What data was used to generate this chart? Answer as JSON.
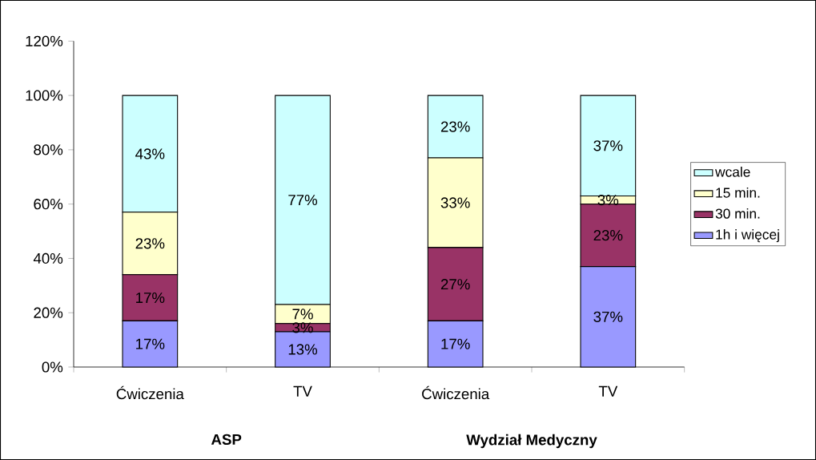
{
  "chart_data": {
    "type": "bar",
    "stacked": true,
    "categories": [
      "Ćwiczenia",
      "TV",
      "Ćwiczenia",
      "TV"
    ],
    "series": [
      {
        "name": "1h i więcej",
        "color": "#9999ff",
        "values": [
          17,
          13,
          17,
          37
        ],
        "value_labels": [
          "17%",
          "13%",
          "17%",
          "37%"
        ]
      },
      {
        "name": "30 min.",
        "color": "#993366",
        "values": [
          17,
          3,
          27,
          23
        ],
        "value_labels": [
          "17%",
          "3%",
          "27%",
          "23%"
        ]
      },
      {
        "name": "15 min.",
        "color": "#ffffcc",
        "values": [
          23,
          7,
          33,
          3
        ],
        "value_labels": [
          "23%",
          "7%",
          "33%",
          "3%"
        ]
      },
      {
        "name": "wcale",
        "color": "#ccffff",
        "values": [
          43,
          77,
          23,
          37
        ],
        "value_labels": [
          "43%",
          "77%",
          "23%",
          "37%"
        ]
      }
    ],
    "ylim": [
      0,
      120
    ],
    "yticks": [
      {
        "value": 0,
        "label": "0%"
      },
      {
        "value": 20,
        "label": "20%"
      },
      {
        "value": 40,
        "label": "40%"
      },
      {
        "value": 60,
        "label": "60%"
      },
      {
        "value": 80,
        "label": "80%"
      },
      {
        "value": 100,
        "label": "100%"
      },
      {
        "value": 120,
        "label": "120%"
      }
    ],
    "annotations": [
      "ASP",
      "Wydział Medyczny"
    ],
    "legend": "right",
    "grid": false
  }
}
